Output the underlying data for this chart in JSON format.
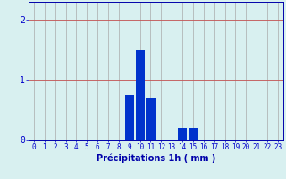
{
  "hours": [
    0,
    1,
    2,
    3,
    4,
    5,
    6,
    7,
    8,
    9,
    10,
    11,
    12,
    13,
    14,
    15,
    16,
    17,
    18,
    19,
    20,
    21,
    22,
    23
  ],
  "values": [
    0,
    0,
    0,
    0,
    0,
    0,
    0,
    0,
    0,
    0.75,
    1.5,
    0.7,
    0,
    0,
    0.2,
    0.2,
    0,
    0,
    0,
    0,
    0,
    0,
    0,
    0
  ],
  "bar_color": "#0033cc",
  "bg_color": "#d8f0f0",
  "grid_color": "#aaaaaa",
  "axis_color": "#0000aa",
  "xlabel": "Précipitations 1h ( mm )",
  "xlabel_fontsize": 7,
  "xlim": [
    -0.5,
    23.5
  ],
  "ylim": [
    0,
    2.3
  ],
  "yticks": [
    0,
    1,
    2
  ],
  "tick_color": "#0000cc",
  "tick_fontsize": 5.5
}
